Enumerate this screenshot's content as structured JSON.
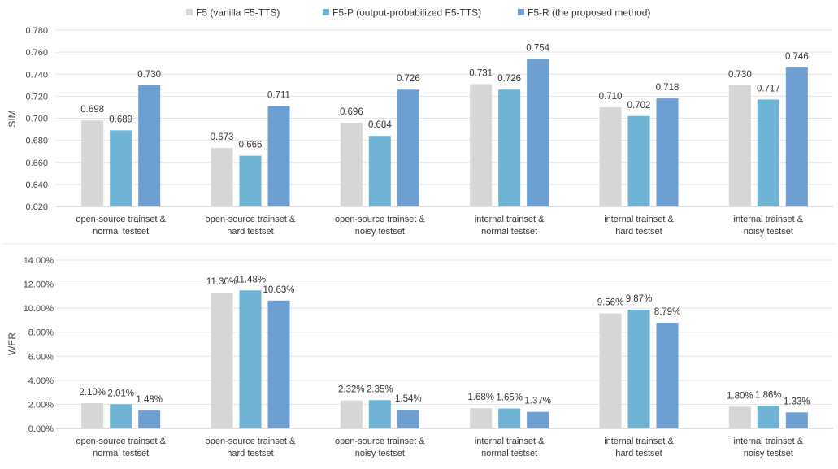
{
  "legend": [
    "F5 (vanilla F5-TTS)",
    "F5-P (output-probabilized F5-TTS)",
    "F5-R (the proposed method)"
  ],
  "colors": [
    "#d6d6d6",
    "#6fb4d4",
    "#6e9fd3"
  ],
  "chart_data": [
    {
      "type": "bar",
      "ylabel": "SIM",
      "ylim": [
        0.62,
        0.78
      ],
      "yticks": [
        "0.620",
        "0.640",
        "0.660",
        "0.680",
        "0.700",
        "0.720",
        "0.740",
        "0.760",
        "0.780"
      ],
      "categories": [
        [
          "open-source trainset &",
          "normal testset"
        ],
        [
          "open-source trainset &",
          "hard testset"
        ],
        [
          "open-source trainset &",
          "noisy testset"
        ],
        [
          "internal trainset &",
          "normal testset"
        ],
        [
          "internal trainset &",
          "hard testset"
        ],
        [
          "internal trainset &",
          "noisy testset"
        ]
      ],
      "series": [
        {
          "name": "F5 (vanilla F5-TTS)",
          "values": [
            0.698,
            0.673,
            0.696,
            0.731,
            0.71,
            0.73
          ],
          "labels": [
            "0.698",
            "0.673",
            "0.696",
            "0.731",
            "0.710",
            "0.730"
          ]
        },
        {
          "name": "F5-P (output-probabilized F5-TTS)",
          "values": [
            0.689,
            0.666,
            0.684,
            0.726,
            0.702,
            0.717
          ],
          "labels": [
            "0.689",
            "0.666",
            "0.684",
            "0.726",
            "0.702",
            "0.717"
          ]
        },
        {
          "name": "F5-R (the proposed method)",
          "values": [
            0.73,
            0.711,
            0.726,
            0.754,
            0.718,
            0.746
          ],
          "labels": [
            "0.730",
            "0.711",
            "0.726",
            "0.754",
            "0.718",
            "0.746"
          ]
        }
      ]
    },
    {
      "type": "bar",
      "ylabel": "WER",
      "ylim": [
        0,
        14
      ],
      "yticks": [
        "0.00%",
        "2.00%",
        "4.00%",
        "6.00%",
        "8.00%",
        "10.00%",
        "12.00%",
        "14.00%"
      ],
      "categories": [
        [
          "open-source trainset &",
          "normal testset"
        ],
        [
          "open-source trainset &",
          "hard testset"
        ],
        [
          "open-source trainset &",
          "noisy testset"
        ],
        [
          "internal trainset &",
          "normal testset"
        ],
        [
          "internal trainset &",
          "hard testset"
        ],
        [
          "internal trainset &",
          "noisy testset"
        ]
      ],
      "series": [
        {
          "name": "F5 (vanilla F5-TTS)",
          "values": [
            2.1,
            11.3,
            2.32,
            1.68,
            9.56,
            1.8
          ],
          "labels": [
            "2.10%",
            "11.30%",
            "2.32%",
            "1.68%",
            "9.56%",
            "1.80%"
          ]
        },
        {
          "name": "F5-P (output-probabilized F5-TTS)",
          "values": [
            2.01,
            11.48,
            2.35,
            1.65,
            9.87,
            1.86
          ],
          "labels": [
            "2.01%",
            "11.48%",
            "2.35%",
            "1.65%",
            "9.87%",
            "1.86%"
          ]
        },
        {
          "name": "F5-R (the proposed method)",
          "values": [
            1.48,
            10.63,
            1.54,
            1.37,
            8.79,
            1.33
          ],
          "labels": [
            "1.48%",
            "10.63%",
            "1.54%",
            "1.37%",
            "8.79%",
            "1.33%"
          ]
        }
      ]
    }
  ]
}
